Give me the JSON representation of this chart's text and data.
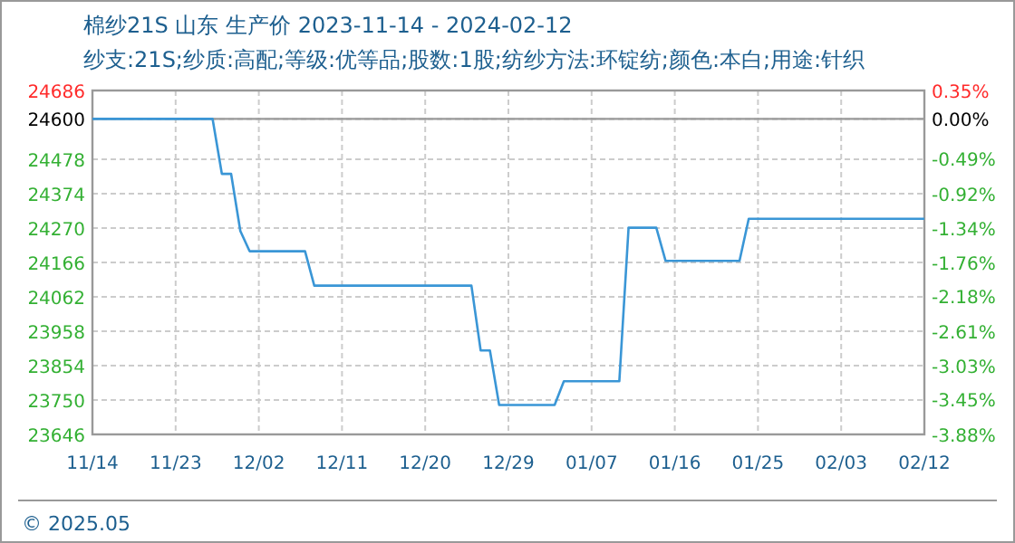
{
  "chart_data": {
    "type": "line",
    "title": "棉纱21S 山东 生产价 2023-11-14 - 2024-02-12",
    "subtitle": "纱支:21S;纱质:高配;等级:优等品;股数:1股;纺纱方法:环锭纺;颜色:本白;用途:针织",
    "annotations": [
      "© 2025.05"
    ],
    "series": [
      {
        "color": "#3a96d6",
        "x": [
          "2023-11-14",
          "2023-11-27",
          "2023-11-28",
          "2023-11-29",
          "2023-11-30",
          "2023-12-01",
          "2023-12-07",
          "2023-12-08",
          "2023-12-25",
          "2023-12-26",
          "2023-12-27",
          "2023-12-28",
          "2024-01-03",
          "2024-01-04",
          "2024-01-10",
          "2024-01-11",
          "2024-01-14",
          "2024-01-15",
          "2024-01-23",
          "2024-01-24",
          "2024-02-12"
        ],
        "values": [
          24600,
          24600,
          24434,
          24434,
          24261,
          24200,
          24200,
          24096,
          24096,
          23900,
          23900,
          23735,
          23735,
          23807,
          23807,
          24271,
          24271,
          24171,
          24171,
          24298,
          24298
        ]
      }
    ],
    "xlim": [
      "2023-11-14",
      "2024-02-12"
    ],
    "xticks": [
      {
        "value": "2023-11-14",
        "label": "11/14"
      },
      {
        "value": "2023-11-23",
        "label": "11/23"
      },
      {
        "value": "2023-12-02",
        "label": "12/02"
      },
      {
        "value": "2023-12-11",
        "label": "12/11"
      },
      {
        "value": "2023-12-20",
        "label": "12/20"
      },
      {
        "value": "2023-12-29",
        "label": "12/29"
      },
      {
        "value": "2024-01-07",
        "label": "01/07"
      },
      {
        "value": "2024-01-16",
        "label": "01/16"
      },
      {
        "value": "2024-01-25",
        "label": "01/25"
      },
      {
        "value": "2024-02-03",
        "label": "02/03"
      },
      {
        "value": "2024-02-12",
        "label": "02/12"
      }
    ],
    "ylim": [
      23646,
      24686
    ],
    "yticks": [
      24686,
      24600,
      24478,
      24374,
      24270,
      24166,
      24062,
      23958,
      23854,
      23750,
      23646
    ],
    "y2lim": [
      -3.88,
      0.35
    ],
    "y2ticks": [
      {
        "value": 0.35,
        "label": "0.35%"
      },
      {
        "value": 0,
        "label": "0.00%"
      },
      {
        "value": -0.49,
        "label": "-0.49%"
      },
      {
        "value": -0.92,
        "label": "-0.92%"
      },
      {
        "value": -1.34,
        "label": "-1.34%"
      },
      {
        "value": -1.76,
        "label": "-1.76%"
      },
      {
        "value": -2.18,
        "label": "-2.18%"
      },
      {
        "value": -2.61,
        "label": "-2.61%"
      },
      {
        "value": -3.03,
        "label": "-3.03%"
      },
      {
        "value": -3.45,
        "label": "-3.45%"
      },
      {
        "value": -3.88,
        "label": "-3.88%"
      }
    ],
    "ref_lines": [
      {
        "axis": "y",
        "value": 24600,
        "color": "#999999",
        "line_style": "solid"
      }
    ],
    "grid": true,
    "marker": "none",
    "line_style": "solid"
  }
}
